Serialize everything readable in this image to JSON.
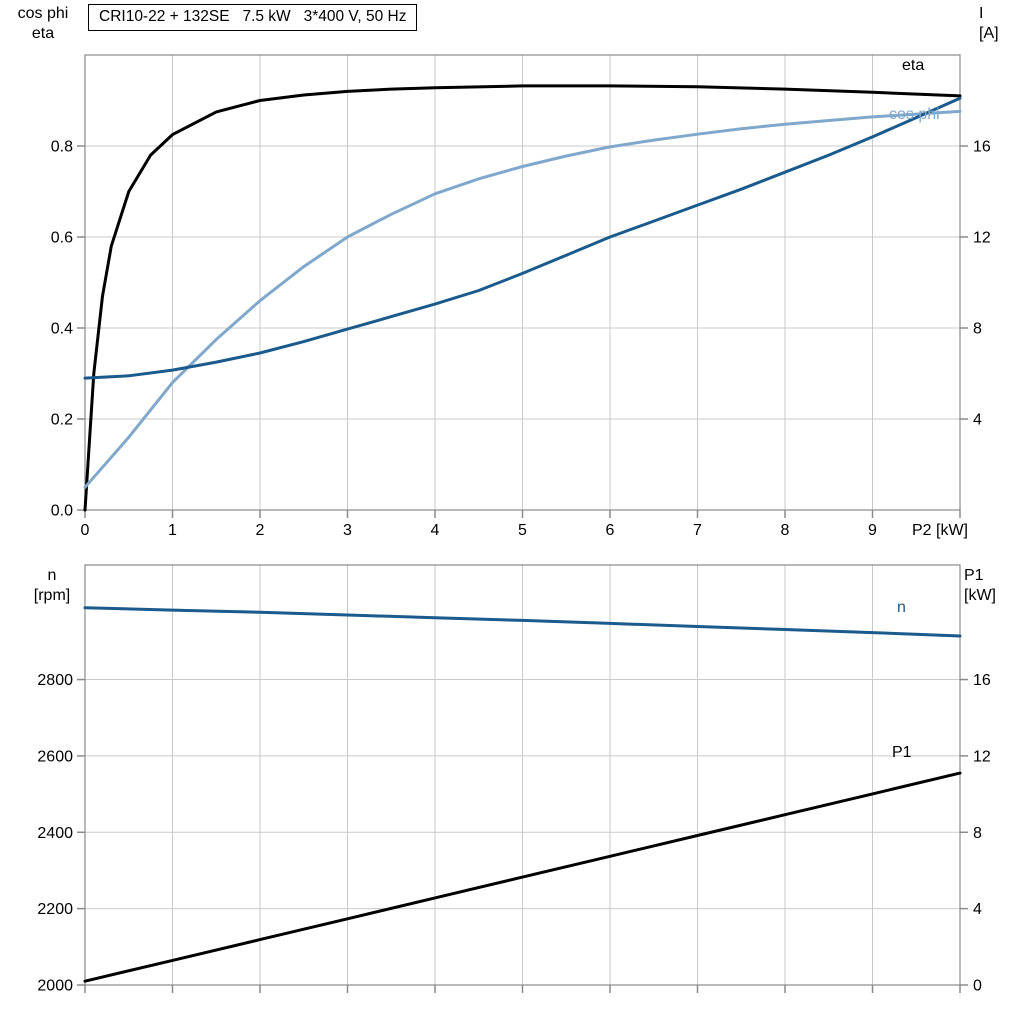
{
  "title": "CRI10-22 + 132SE   7.5 kW   3*400 V, 50 Hz",
  "colors": {
    "grid": "#c9c9c9",
    "axis": "#8a8a8a",
    "text": "#000000",
    "black_curve": "#000000",
    "dark_blue_curve": "#1a5a8c",
    "light_blue_curve": "#80a8cc"
  },
  "chart_data": [
    {
      "type": "line",
      "title": "CRI10-22 + 132SE   7.5 kW   3*400 V, 50 Hz",
      "xlabel": "P2 [kW]",
      "x_range": [
        0,
        10
      ],
      "x_ticks": [
        0,
        1,
        2,
        3,
        4,
        5,
        6,
        7,
        8,
        9,
        10
      ],
      "x_tick_labels": [
        "0",
        "1",
        "2",
        "3",
        "4",
        "5",
        "6",
        "7",
        "8",
        "9",
        ""
      ],
      "y_left": {
        "label_lines": [
          "cos phi",
          "eta"
        ],
        "range": [
          0,
          1.0
        ],
        "tick_values": [
          0.0,
          0.2,
          0.4,
          0.6,
          0.8
        ],
        "tick_labels": [
          "0.0",
          "0.2",
          "0.4",
          "0.6",
          "0.8"
        ]
      },
      "y_right": {
        "label_lines": [
          "I",
          "[A]"
        ],
        "range": [
          0,
          20
        ],
        "tick_values": [
          4,
          8,
          12,
          16
        ],
        "tick_labels": [
          "4",
          "8",
          "12",
          "16"
        ]
      },
      "series": [
        {
          "name": "eta",
          "axis": "left",
          "color": "#000000",
          "x": [
            0,
            0.1,
            0.2,
            0.3,
            0.5,
            0.75,
            1,
            1.5,
            2,
            2.5,
            3,
            3.5,
            4,
            5,
            6,
            7,
            8,
            9,
            10
          ],
          "y": [
            0,
            0.3,
            0.47,
            0.58,
            0.7,
            0.78,
            0.825,
            0.875,
            0.9,
            0.912,
            0.92,
            0.925,
            0.928,
            0.932,
            0.932,
            0.93,
            0.925,
            0.918,
            0.91
          ]
        },
        {
          "name": "cos phi",
          "axis": "left",
          "color": "#80a8cc",
          "x": [
            0,
            0.5,
            1,
            1.5,
            2,
            2.5,
            3,
            3.5,
            4,
            4.5,
            5,
            5.5,
            6,
            6.5,
            7,
            7.5,
            8,
            8.5,
            9,
            9.5,
            10
          ],
          "y": [
            0.05,
            0.16,
            0.28,
            0.375,
            0.46,
            0.535,
            0.6,
            0.65,
            0.695,
            0.728,
            0.755,
            0.778,
            0.798,
            0.813,
            0.826,
            0.838,
            0.848,
            0.856,
            0.864,
            0.87,
            0.876
          ]
        },
        {
          "name": "I",
          "axis": "right",
          "color": "#1a5a8c",
          "x": [
            0,
            0.5,
            1,
            1.5,
            2,
            2.5,
            3,
            3.5,
            4,
            4.5,
            5,
            5.5,
            6,
            6.5,
            7,
            7.5,
            8,
            8.5,
            9,
            9.5,
            10
          ],
          "y": [
            5.8,
            5.9,
            6.15,
            6.5,
            6.9,
            7.4,
            7.95,
            8.5,
            9.05,
            9.65,
            10.4,
            11.2,
            12.0,
            12.7,
            13.4,
            14.1,
            14.85,
            15.6,
            16.4,
            17.25,
            18.1
          ]
        }
      ]
    },
    {
      "type": "line",
      "title": "",
      "xlabel": "",
      "x_range": [
        0,
        10
      ],
      "x_ticks": [
        0,
        1,
        2,
        3,
        4,
        5,
        6,
        7,
        8,
        9,
        10
      ],
      "x_tick_labels": [
        "",
        "",
        "",
        "",
        "",
        "",
        "",
        "",
        "",
        "",
        ""
      ],
      "y_left": {
        "label_lines": [
          "n",
          "[rpm]"
        ],
        "range": [
          2000,
          3100
        ],
        "tick_values": [
          2000,
          2200,
          2400,
          2600,
          2800
        ],
        "tick_labels": [
          "2000",
          "2200",
          "2400",
          "2600",
          "2800"
        ]
      },
      "y_right": {
        "label_lines": [
          "P1",
          "[kW]"
        ],
        "range": [
          0,
          22
        ],
        "tick_values": [
          0,
          4,
          8,
          12,
          16
        ],
        "tick_labels": [
          "0",
          "4",
          "8",
          "12",
          "16"
        ]
      },
      "series": [
        {
          "name": "n",
          "axis": "left",
          "color": "#1a5a8c",
          "x": [
            0,
            1,
            2,
            3,
            4,
            5,
            6,
            7,
            8,
            9,
            10
          ],
          "y": [
            2988,
            2982,
            2976,
            2969,
            2962,
            2955,
            2947,
            2939,
            2931,
            2923,
            2914
          ]
        },
        {
          "name": "P1",
          "axis": "right",
          "color": "#000000",
          "x": [
            0,
            1,
            2,
            3,
            4,
            5,
            6,
            7,
            8,
            9,
            10
          ],
          "y": [
            0.2,
            1.29,
            2.38,
            3.47,
            4.56,
            5.65,
            6.74,
            7.83,
            8.92,
            10.01,
            11.1
          ]
        }
      ]
    }
  ]
}
